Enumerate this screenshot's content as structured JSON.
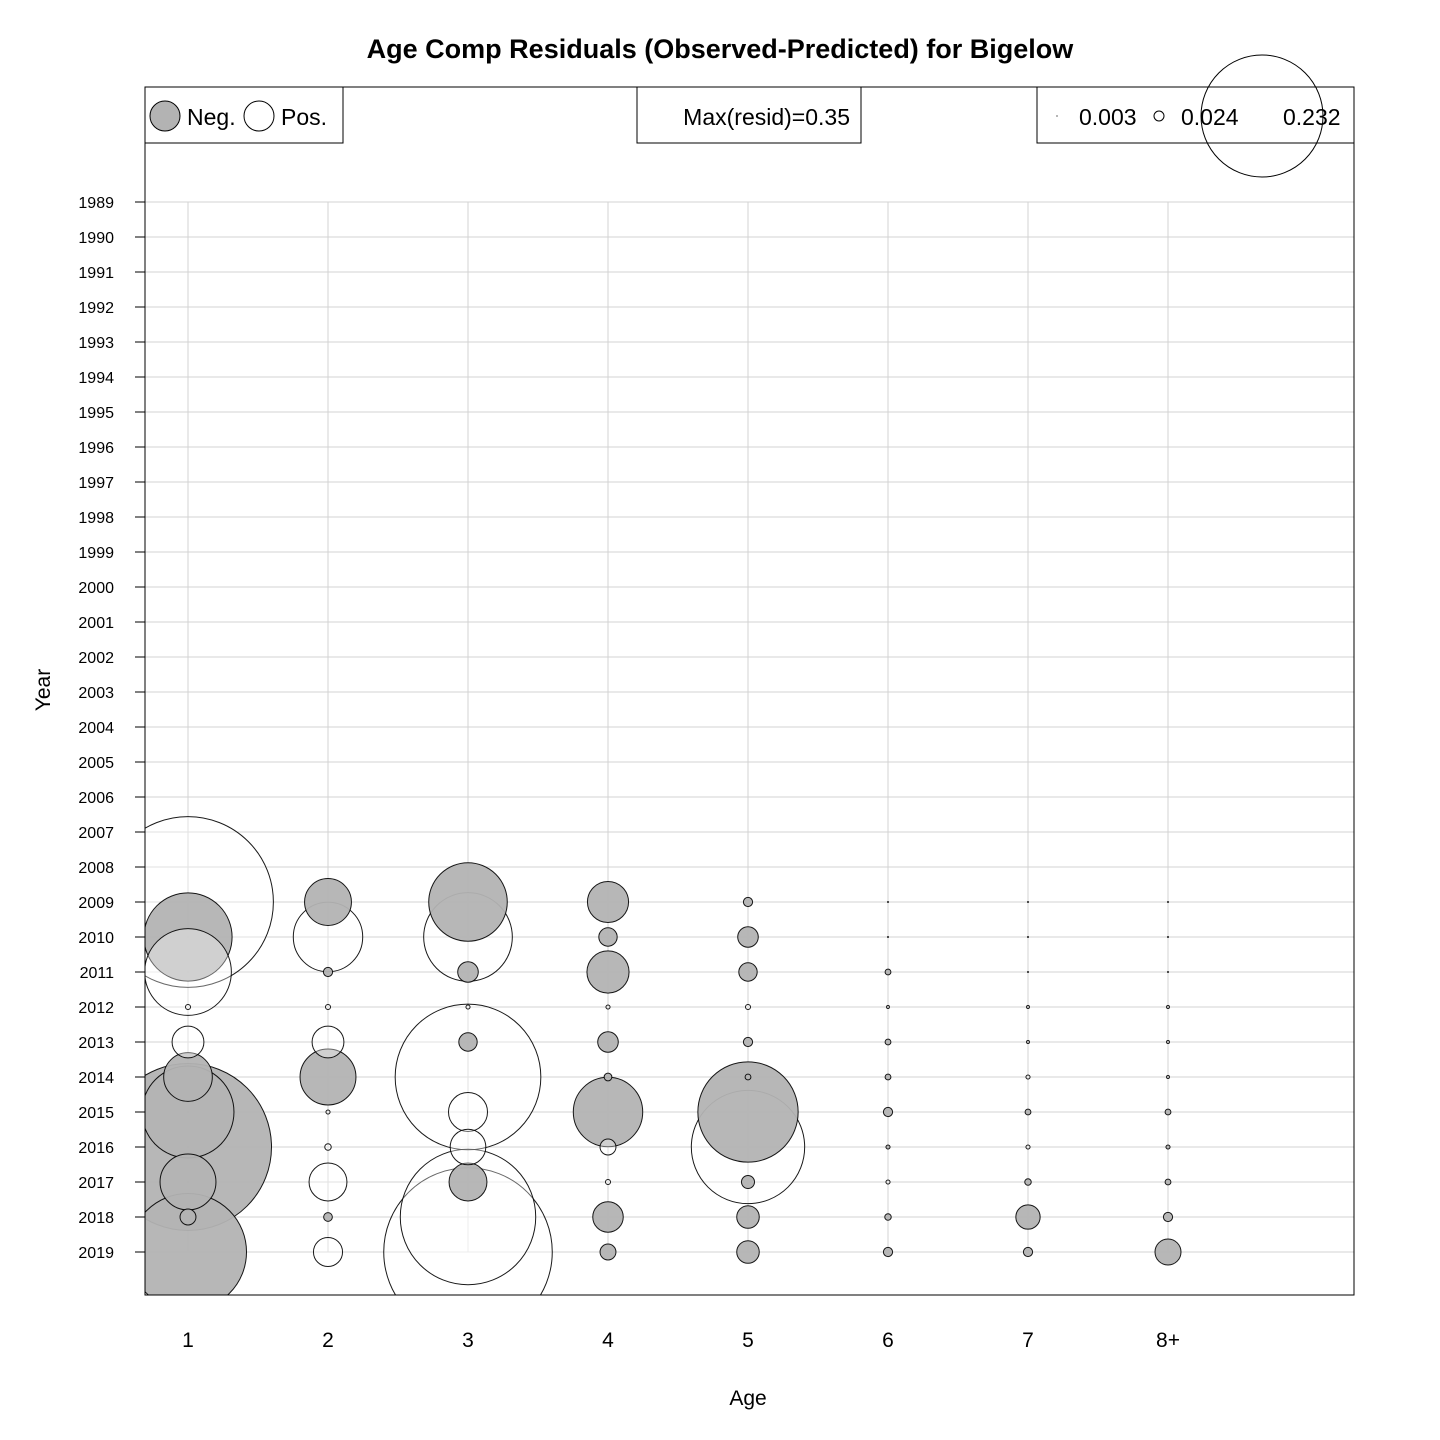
{
  "chart_data": {
    "type": "bubble",
    "title": "Age Comp Residuals (Observed-Predicted) for Bigelow",
    "xlabel": "Age",
    "ylabel": "Year",
    "ages": [
      "1",
      "2",
      "3",
      "4",
      "5",
      "6",
      "7",
      "8+"
    ],
    "years": [
      "1989",
      "1990",
      "1991",
      "1992",
      "1993",
      "1994",
      "1995",
      "1996",
      "1997",
      "1998",
      "1999",
      "2000",
      "2001",
      "2002",
      "2003",
      "2004",
      "2005",
      "2006",
      "2007",
      "2008",
      "2009",
      "2010",
      "2011",
      "2012",
      "2013",
      "2014",
      "2015",
      "2016",
      "2017",
      "2018",
      "2019"
    ],
    "colors": {
      "negative": "#b3b3b3",
      "positive": "#ffffff",
      "grid": "#d3d3d3",
      "outline": "#000000"
    },
    "legend": {
      "neg_label": "Neg.",
      "pos_label": "Pos.",
      "max_label": "Max(resid)=0.35",
      "scale_values": [
        "0.003",
        "0.024",
        "0.232"
      ]
    },
    "max_resid": 0.35,
    "residuals": [
      {
        "year": "2009",
        "values": [
          0.345,
          -0.026,
          -0.073,
          -0.02,
          -0.001,
          0.0,
          0.0,
          0.0
        ]
      },
      {
        "year": "2010",
        "values": [
          -0.092,
          0.057,
          0.093,
          -0.004,
          -0.005,
          0.0,
          0.0,
          0.0
        ]
      },
      {
        "year": "2011",
        "values": [
          0.089,
          -0.001,
          -0.005,
          -0.021,
          -0.004,
          -0.0004,
          0.0,
          0.0
        ]
      },
      {
        "year": "2012",
        "values": [
          0.0003,
          0.0003,
          0.0002,
          0.0002,
          0.0003,
          0.0001,
          0.0001,
          0.0001
        ]
      },
      {
        "year": "2013",
        "values": [
          0.012,
          0.012,
          -0.004,
          -0.005,
          -0.001,
          -0.0004,
          0.0001,
          0.0001
        ]
      },
      {
        "year": "2014",
        "values": [
          -0.028,
          -0.037,
          0.251,
          -0.0007,
          -0.0004,
          -0.0004,
          0.0002,
          0.0001
        ]
      },
      {
        "year": "2015",
        "values": [
          -0.1,
          0.0002,
          0.018,
          -0.057,
          -0.119,
          -0.001,
          -0.0004,
          -0.0004
        ]
      },
      {
        "year": "2016",
        "values": [
          -0.33,
          0.0005,
          0.015,
          0.003,
          0.152,
          -0.0002,
          0.0002,
          -0.0002
        ]
      },
      {
        "year": "2017",
        "values": [
          -0.037,
          0.017,
          -0.017,
          0.0003,
          -0.002,
          0.0002,
          -0.0005,
          -0.0004
        ]
      },
      {
        "year": "2018",
        "values": [
          -0.003,
          -0.0009,
          0.217,
          -0.011,
          -0.006,
          -0.0005,
          -0.007,
          -0.001
        ]
      },
      {
        "year": "2019",
        "values": [
          -0.162,
          0.01,
          0.336,
          -0.003,
          -0.006,
          -0.001,
          -0.001,
          -0.008
        ]
      }
    ]
  }
}
